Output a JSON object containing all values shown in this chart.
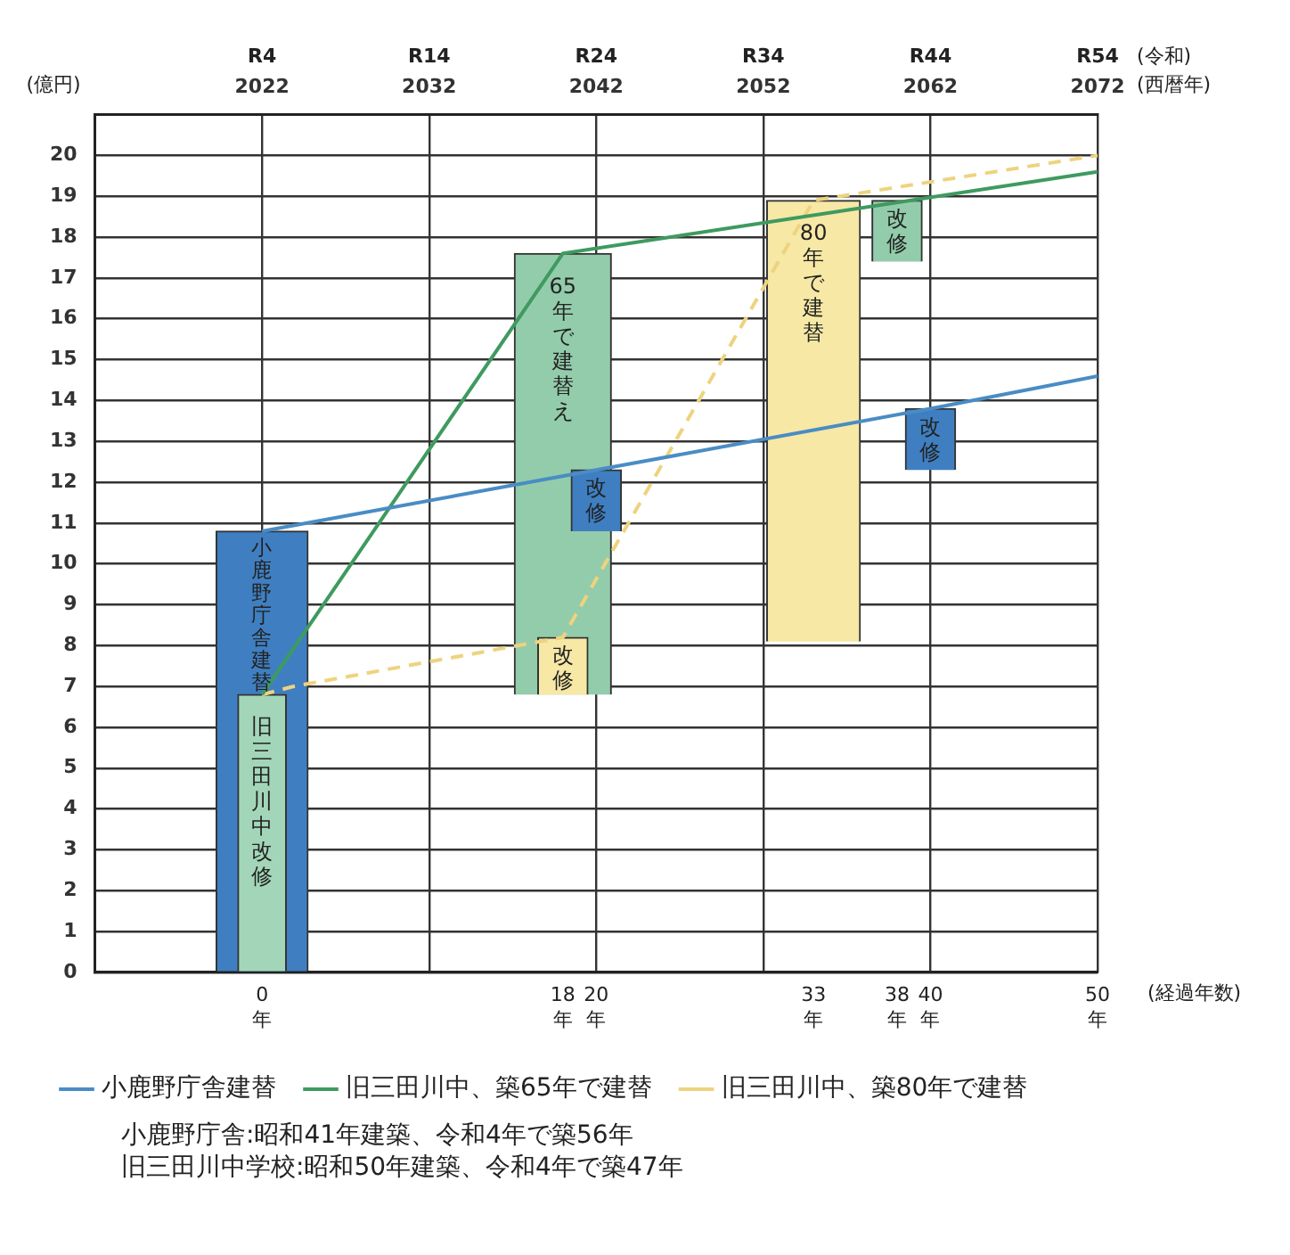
{
  "chart_data": {
    "type": "bar",
    "ylabel": "(億円)",
    "xlabel": "(経過年数)",
    "x2label": "(令和)\n(西暦年)",
    "xlim": [
      -10,
      50
    ],
    "xticks": [
      {
        "value": 0,
        "label": "0\n年"
      },
      {
        "value": 18,
        "label": "18\n年"
      },
      {
        "value": 20,
        "label": "20\n年"
      },
      {
        "value": 33,
        "label": "33\n年"
      },
      {
        "value": 38,
        "label": "38\n年"
      },
      {
        "value": 40,
        "label": "40\n年"
      },
      {
        "value": 50,
        "label": "50\n年"
      }
    ],
    "x2lim": [
      2012,
      2072
    ],
    "x2ticks": [
      2022,
      2032,
      2042,
      2052,
      2062,
      2072
    ],
    "ylim": [
      0,
      21
    ],
    "yticks": [
      0,
      1,
      2,
      3,
      4,
      5,
      6,
      7,
      8,
      9,
      10,
      11,
      12,
      13,
      14,
      15,
      16,
      17,
      18,
      19,
      20
    ],
    "grid": true,
    "legend": "bottom",
    "series": [
      {
        "name": "小鹿野庁舎建替",
        "color": "#3f7fc1",
        "x": [
          0
        ],
        "base": [
          0
        ],
        "values": [
          10.8
        ]
      },
      {
        "name": "旧三田川中改修",
        "color": "#a3d6b8",
        "x": [
          0
        ],
        "base": [
          0
        ],
        "values": [
          6.8
        ]
      },
      {
        "name": "65年で建替え",
        "color": "#93ccab",
        "x": [
          18
        ],
        "base": [
          6.8
        ],
        "values": [
          10.8
        ]
      },
      {
        "name": "改修",
        "color": "#f7e8a6",
        "x": [
          18
        ],
        "base": [
          6.8
        ],
        "values": [
          1.4
        ]
      },
      {
        "name": "改修",
        "color": "#3f7fc1",
        "x": [
          20
        ],
        "base": [
          10.8
        ],
        "values": [
          1.5
        ]
      },
      {
        "name": "80年で建替",
        "color": "#f7e8a6",
        "x": [
          33
        ],
        "base": [
          8.1
        ],
        "values": [
          10.8
        ]
      },
      {
        "name": "改修",
        "color": "#93ccab",
        "x": [
          38
        ],
        "base": [
          17.4
        ],
        "values": [
          1.5
        ]
      },
      {
        "name": "改修",
        "color": "#3f7fc1",
        "x": [
          40
        ],
        "base": [
          12.3
        ],
        "values": [
          1.5
        ]
      },
      {
        "name": "小鹿野庁舎建替",
        "type": "line",
        "color": "#4a8cc4",
        "x": [
          0,
          20,
          40,
          50
        ],
        "values": [
          10.8,
          12.3,
          13.8,
          14.6
        ]
      },
      {
        "name": "旧三田川中、築65年で建替",
        "type": "line",
        "color": "#3f9a5f",
        "x": [
          0,
          18,
          50
        ],
        "values": [
          6.8,
          17.6,
          19.6
        ]
      },
      {
        "name": "旧三田川中、築80年で建替",
        "type": "line",
        "color": "#eed37f",
        "line_style": "dashed",
        "x": [
          0,
          1.9,
          18,
          33,
          50
        ],
        "values": [
          6.8,
          7.0,
          8.2,
          18.9,
          20
        ]
      }
    ],
    "annotations": [
      "R4",
      "R14",
      "R24",
      "R34",
      "R44",
      "R54",
      "小鹿野庁舎:昭和41年建築、令和4年で築56年",
      "旧三田川中学校:昭和50年建築、令和4年で築47年"
    ]
  }
}
